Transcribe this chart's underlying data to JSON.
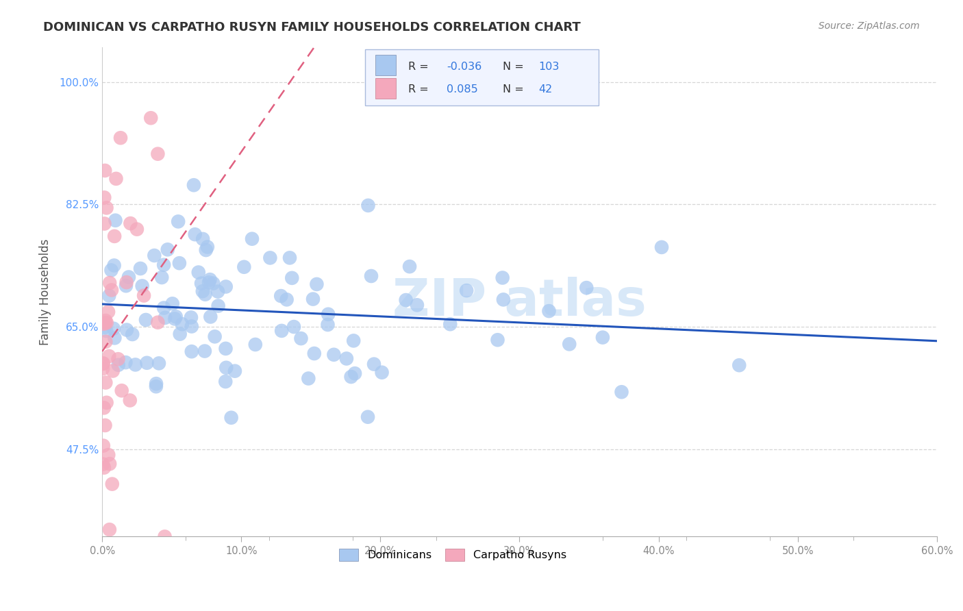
{
  "title": "DOMINICAN VS CARPATHO RUSYN FAMILY HOUSEHOLDS CORRELATION CHART",
  "source": "Source: ZipAtlas.com",
  "ylabel": "Family Households",
  "xlim": [
    0.0,
    0.6
  ],
  "ylim": [
    0.35,
    1.05
  ],
  "ytick_positions": [
    0.475,
    0.65,
    0.825,
    1.0
  ],
  "ytick_labels": [
    "47.5%",
    "65.0%",
    "82.5%",
    "100.0%"
  ],
  "xtick_values": [
    0.0,
    0.1,
    0.2,
    0.3,
    0.4,
    0.5,
    0.6
  ],
  "xtick_labels": [
    "0.0%",
    "10.0%",
    "20.0%",
    "30.0%",
    "40.0%",
    "50.0%",
    "60.0%"
  ],
  "blue_color": "#A8C8F0",
  "pink_color": "#F4A8BC",
  "blue_line_color": "#2255BB",
  "pink_line_color": "#E06080",
  "blue_R": -0.036,
  "blue_N": 103,
  "pink_R": 0.085,
  "pink_N": 42,
  "background_color": "#ffffff",
  "grid_color": "#cccccc",
  "watermark_color": "#D8E8F8",
  "title_color": "#333333",
  "source_color": "#888888",
  "ylabel_color": "#555555",
  "ytick_color": "#5599FF",
  "xtick_color": "#888888",
  "legend_text_color": "#333333",
  "legend_num_color": "#3377DD"
}
